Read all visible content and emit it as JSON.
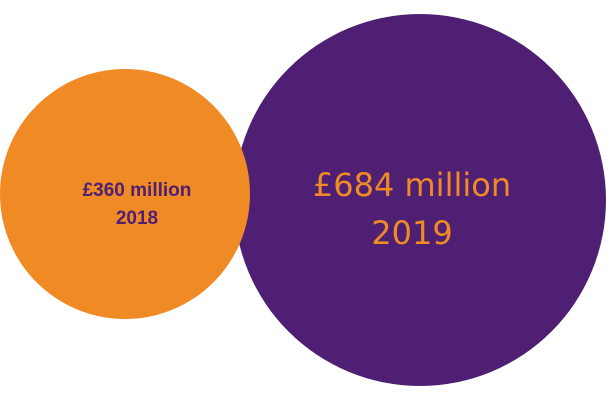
{
  "chart_data": {
    "type": "bubble",
    "series": [
      {
        "label": "£684 million",
        "year": "2019",
        "value": 684,
        "color": "#4f1f73",
        "label_color": "#f08a24"
      },
      {
        "label": "£360 million",
        "year": "2018",
        "value": 360,
        "color": "#f08a24",
        "label_color": "#4f1f73"
      }
    ]
  }
}
